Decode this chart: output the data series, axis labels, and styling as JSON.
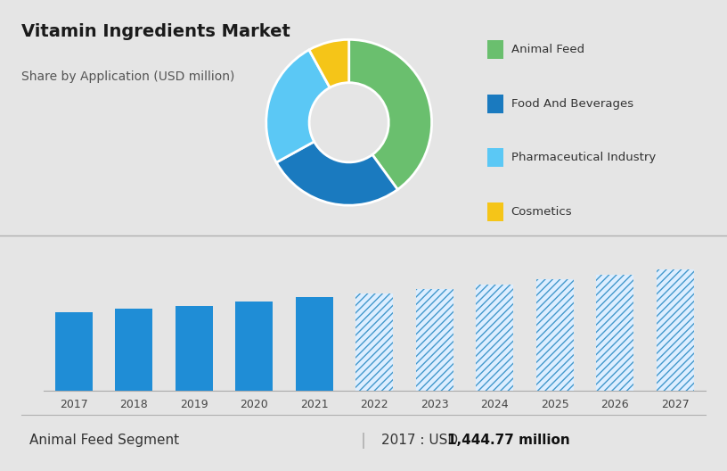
{
  "title": "Vitamin Ingredients Market",
  "subtitle": "Share by Application (USD million)",
  "pie_labels": [
    "Animal Feed",
    "Food And Beverages",
    "Pharmaceutical Industry",
    "Cosmetics"
  ],
  "pie_values": [
    40,
    27,
    25,
    8
  ],
  "pie_colors": [
    "#6abf6e",
    "#1a7abf",
    "#5bc8f5",
    "#f5c518"
  ],
  "bar_years_solid": [
    2017,
    2018,
    2019,
    2020,
    2021
  ],
  "bar_heights_solid": [
    1444,
    1510,
    1570,
    1640,
    1720
  ],
  "bar_years_hatched": [
    2022,
    2023,
    2024,
    2025,
    2026,
    2027
  ],
  "bar_heights_hatched": [
    1800,
    1880,
    1960,
    2050,
    2140,
    2240
  ],
  "bar_color_solid": "#1f8dd6",
  "bg_top": "#ccd3e0",
  "bg_bottom": "#e5e5e5",
  "legend_labels": [
    "Animal Feed",
    "Food And Beverages",
    "Pharmaceutical Industry",
    "Cosmetics"
  ],
  "footer_left": "Animal Feed Segment",
  "footer_right_normal": "2017 : USD ",
  "footer_right_bold": "1,444.77 million",
  "ylim_max": 2600
}
